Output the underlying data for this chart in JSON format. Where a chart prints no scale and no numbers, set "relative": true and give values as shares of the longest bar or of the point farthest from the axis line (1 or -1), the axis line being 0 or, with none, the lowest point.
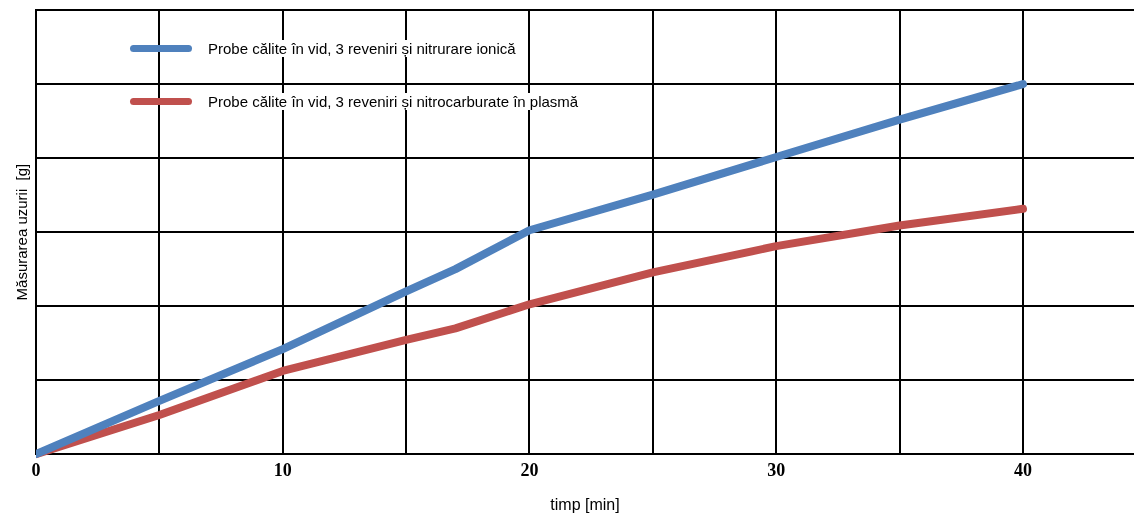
{
  "chart_data": {
    "type": "line",
    "xlabel": "timp [min]",
    "ylabel": "Măsurarea uzurii  [g]",
    "relative": true,
    "grid": true,
    "legend": "top left",
    "marker": "none",
    "line_style": "solid",
    "xlim": [
      0,
      44.5
    ],
    "xticks": [
      0,
      {
        "value": 5,
        "label": null
      },
      10,
      {
        "value": 15,
        "label": null
      },
      20,
      {
        "value": 25,
        "label": null
      },
      30,
      {
        "value": 35,
        "label": null
      },
      40
    ],
    "x": [
      0,
      5,
      10,
      15,
      17,
      20,
      25,
      30,
      35,
      40
    ],
    "series": [
      {
        "name": "Probe călite în vid, 3 reveniri și nitrurare ionică",
        "color": "#4f81bd",
        "values": [
          0,
          0.144,
          0.284,
          0.44,
          0.5,
          0.605,
          0.701,
          0.803,
          0.904,
          1
        ]
      },
      {
        "name": "Probe călite în vid, 3 reveniri și nitrocarburate în plasmă",
        "color": "#c0504d",
        "values": [
          0,
          0.106,
          0.225,
          0.309,
          0.34,
          0.405,
          0.491,
          0.562,
          0.618,
          0.663
        ]
      }
    ]
  }
}
